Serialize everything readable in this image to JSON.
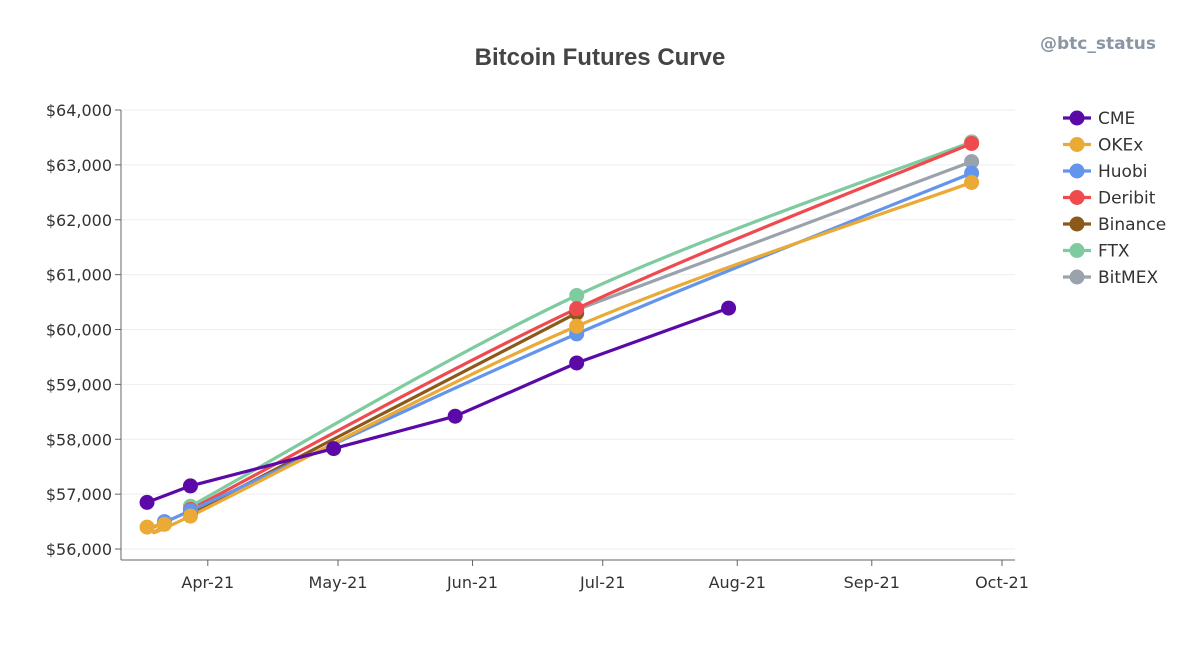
{
  "watermark": "@btc_status",
  "chart_data": {
    "type": "line",
    "title": "Bitcoin Futures Curve",
    "xlabel": "",
    "ylabel": "",
    "ylim": [
      55800,
      64000
    ],
    "xlim": [
      "2021-03-12",
      "2021-10-04"
    ],
    "grid": "horizontal",
    "legend_position": "right",
    "y_ticks": [
      56000,
      57000,
      58000,
      59000,
      60000,
      61000,
      62000,
      63000,
      64000
    ],
    "y_tick_labels": [
      "$56,000",
      "$57,000",
      "$58,000",
      "$59,000",
      "$60,000",
      "$61,000",
      "$62,000",
      "$63,000",
      "$64,000"
    ],
    "x_ticks": [
      "2021-04-01",
      "2021-05-01",
      "2021-06-01",
      "2021-07-01",
      "2021-08-01",
      "2021-09-01",
      "2021-10-01"
    ],
    "x_tick_labels": [
      "Apr-21",
      "May-21",
      "Jun-21",
      "Jul-21",
      "Aug-21",
      "Sep-21",
      "Oct-21"
    ],
    "series": [
      {
        "name": "CME",
        "color": "#5b0aa8",
        "smooth": false,
        "x": [
          "2021-03-18",
          "2021-03-28",
          "2021-04-30",
          "2021-05-28",
          "2021-06-25",
          "2021-07-30"
        ],
        "y": [
          56850,
          57150,
          57830,
          58420,
          59390,
          60390
        ]
      },
      {
        "name": "OKEx",
        "color": "#eba935",
        "smooth": true,
        "x": [
          "2021-03-18",
          "2021-03-22",
          "2021-03-28",
          "2021-06-25",
          "2021-09-24"
        ],
        "y": [
          56400,
          56450,
          56600,
          60060,
          62680
        ]
      },
      {
        "name": "Huobi",
        "color": "#6495ed",
        "smooth": true,
        "x": [
          "2021-03-22",
          "2021-03-28",
          "2021-06-25",
          "2021-09-24"
        ],
        "y": [
          56500,
          56700,
          59920,
          62850
        ]
      },
      {
        "name": "Deribit",
        "color": "#ef4b4f",
        "smooth": true,
        "x": [
          "2021-03-28",
          "2021-06-25",
          "2021-09-24"
        ],
        "y": [
          56720,
          60380,
          63390
        ]
      },
      {
        "name": "Binance",
        "color": "#8b5a1b",
        "smooth": true,
        "x": [
          "2021-03-28",
          "2021-06-25"
        ],
        "y": [
          56650,
          60300
        ]
      },
      {
        "name": "FTX",
        "color": "#7ecba0",
        "smooth": true,
        "x": [
          "2021-03-28",
          "2021-06-25",
          "2021-09-24"
        ],
        "y": [
          56780,
          60620,
          63420
        ]
      },
      {
        "name": "BitMEX",
        "color": "#9aa2ab",
        "smooth": true,
        "x": [
          "2021-06-25",
          "2021-09-24"
        ],
        "y": [
          60360,
          63060
        ]
      }
    ]
  }
}
